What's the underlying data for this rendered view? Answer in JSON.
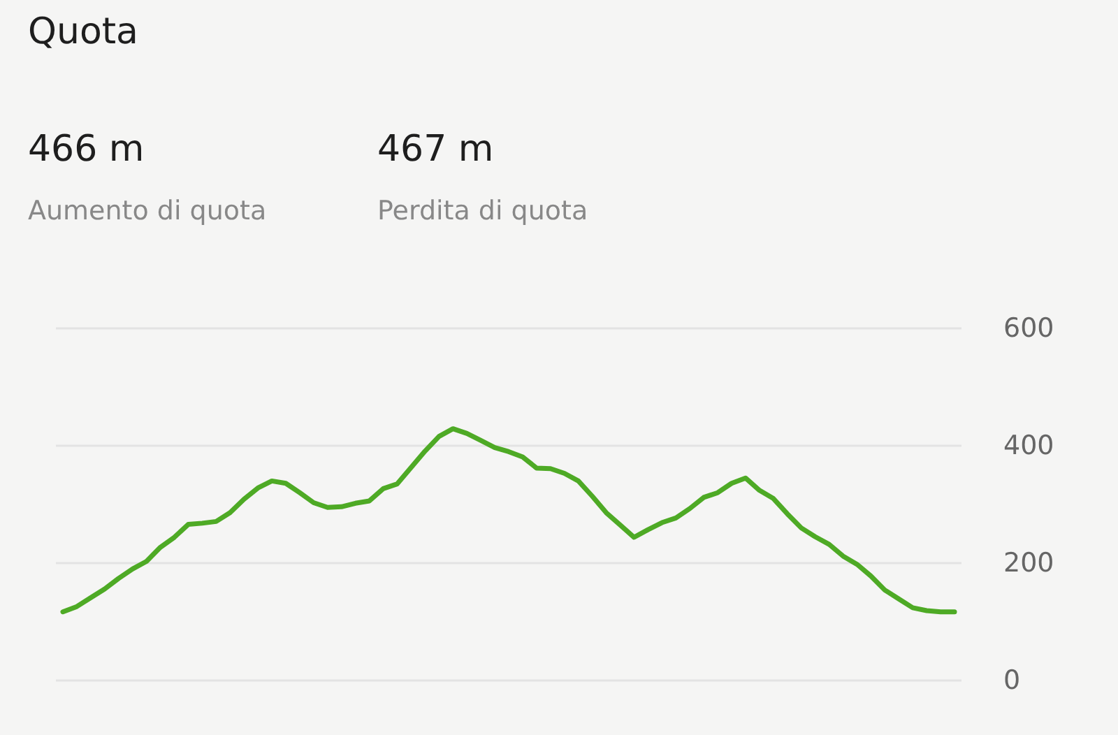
{
  "chart_data": {
    "type": "line",
    "title": "Quota",
    "annotations": [
      "466 m",
      "Aumento di quota",
      "467 m",
      "Perdita di quota"
    ],
    "categories": [
      null,
      null,
      null,
      null,
      null,
      null,
      null,
      null,
      null,
      null,
      null,
      null,
      null,
      null,
      null,
      null,
      null,
      null,
      null,
      null,
      null,
      null,
      null,
      null,
      null,
      null,
      null,
      null,
      null,
      null,
      null,
      null,
      null,
      null,
      null,
      null,
      null,
      null,
      null,
      null,
      null,
      null,
      null,
      null,
      null,
      null,
      null,
      null,
      null,
      null,
      null,
      null,
      null,
      null,
      null,
      null,
      null,
      null,
      null,
      null,
      null,
      null,
      null,
      null,
      null
    ],
    "series": [
      {
        "color": "#4eaa25",
        "values": [
          117,
          126,
          141,
          156,
          174,
          190,
          203,
          227,
          244,
          266,
          268,
          271,
          286,
          309,
          328,
          340,
          336,
          320,
          303,
          295,
          296,
          302,
          306,
          327,
          335,
          363,
          391,
          416,
          429,
          421,
          409,
          397,
          390,
          381,
          362,
          361,
          353,
          340,
          314,
          286,
          265,
          244,
          257,
          269,
          277,
          293,
          312,
          320,
          336,
          345,
          324,
          310,
          284,
          260,
          245,
          232,
          212,
          198,
          178,
          154,
          139,
          124,
          119,
          117,
          117
        ]
      }
    ],
    "ylim": [
      0,
      600
    ],
    "yticks": [
      0,
      200,
      400,
      600
    ],
    "grid": "y",
    "tick_labels": "y"
  }
}
